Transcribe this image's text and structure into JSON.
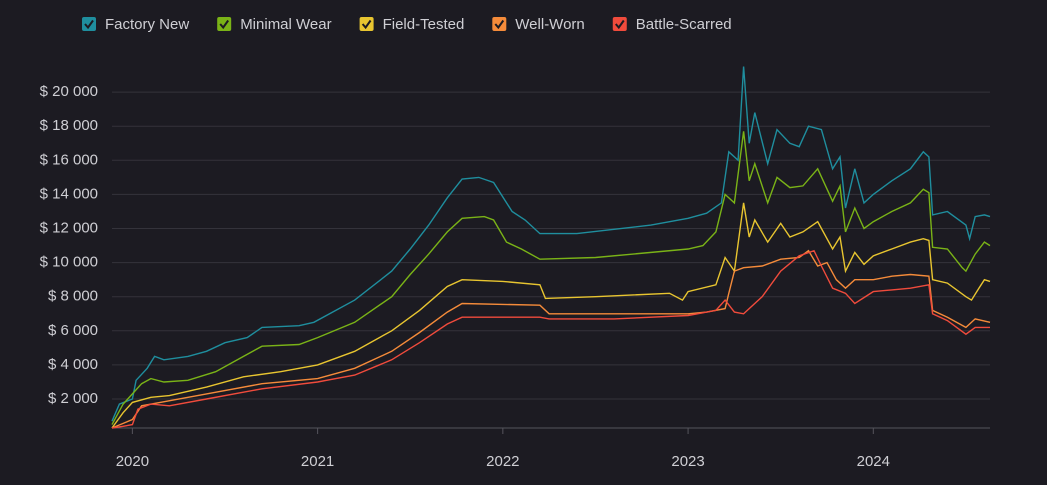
{
  "chart_data": {
    "type": "line",
    "xlim": [
      2019.89,
      2024.63
    ],
    "xticks": [
      2020,
      2021,
      2022,
      2023,
      2024
    ],
    "ylim": [
      300,
      22000
    ],
    "yticks": [
      {
        "value": 2000,
        "label": "$ 2 000"
      },
      {
        "value": 4000,
        "label": "$ 4 000"
      },
      {
        "value": 6000,
        "label": "$ 6 000"
      },
      {
        "value": 8000,
        "label": "$ 8 000"
      },
      {
        "value": 10000,
        "label": "$ 10 000"
      },
      {
        "value": 12000,
        "label": "$ 12 000"
      },
      {
        "value": 14000,
        "label": "$ 14 000"
      },
      {
        "value": 16000,
        "label": "$ 16 000"
      },
      {
        "value": 18000,
        "label": "$ 18 000"
      },
      {
        "value": 20000,
        "label": "$ 20 000"
      }
    ],
    "grid": true,
    "series": [
      {
        "name": "Factory New",
        "color": "#1f8e9e",
        "x": [
          2019.89,
          2019.93,
          2020.0,
          2020.02,
          2020.08,
          2020.12,
          2020.17,
          2020.3,
          2020.4,
          2020.5,
          2020.62,
          2020.7,
          2020.9,
          2020.98,
          2021.2,
          2021.4,
          2021.5,
          2021.6,
          2021.7,
          2021.78,
          2021.87,
          2021.95,
          2022.05,
          2022.12,
          2022.2,
          2022.4,
          2022.8,
          2023.0,
          2023.1,
          2023.18,
          2023.22,
          2023.27,
          2023.3,
          2023.33,
          2023.36,
          2023.43,
          2023.48,
          2023.55,
          2023.6,
          2023.65,
          2023.72,
          2023.78,
          2023.82,
          2023.85,
          2023.9,
          2023.95,
          2024.0,
          2024.1,
          2024.2,
          2024.27,
          2024.3,
          2024.32,
          2024.4,
          2024.5,
          2024.52,
          2024.55,
          2024.6,
          2024.63
        ],
        "values": [
          700,
          1700,
          2000,
          3100,
          3800,
          4500,
          4300,
          4500,
          4800,
          5300,
          5600,
          6200,
          6300,
          6500,
          7800,
          9500,
          10800,
          12200,
          13800,
          14900,
          15000,
          14700,
          13000,
          12500,
          11700,
          11700,
          12200,
          12600,
          12900,
          13500,
          16500,
          16000,
          21500,
          17000,
          18800,
          15800,
          17800,
          17000,
          16800,
          18000,
          17800,
          15500,
          16200,
          13200,
          15500,
          13500,
          14000,
          14800,
          15500,
          16500,
          16200,
          12800,
          13000,
          12200,
          11400,
          12700,
          12800,
          12700
        ]
      },
      {
        "name": "Minimal Wear",
        "color": "#7ab317",
        "x": [
          2019.89,
          2019.95,
          2020.0,
          2020.05,
          2020.1,
          2020.17,
          2020.3,
          2020.45,
          2020.6,
          2020.7,
          2020.9,
          2021.0,
          2021.2,
          2021.4,
          2021.5,
          2021.6,
          2021.7,
          2021.78,
          2021.9,
          2021.95,
          2022.02,
          2022.1,
          2022.2,
          2022.5,
          2023.0,
          2023.08,
          2023.15,
          2023.2,
          2023.25,
          2023.3,
          2023.33,
          2023.36,
          2023.43,
          2023.48,
          2023.55,
          2023.62,
          2023.7,
          2023.78,
          2023.82,
          2023.85,
          2023.9,
          2023.95,
          2024.0,
          2024.1,
          2024.2,
          2024.27,
          2024.3,
          2024.32,
          2024.4,
          2024.48,
          2024.5,
          2024.55,
          2024.6,
          2024.63
        ],
        "values": [
          500,
          1700,
          2300,
          2900,
          3200,
          3000,
          3100,
          3600,
          4500,
          5100,
          5200,
          5600,
          6500,
          8000,
          9300,
          10500,
          11800,
          12600,
          12700,
          12500,
          11200,
          10800,
          10200,
          10300,
          10800,
          11000,
          11800,
          14000,
          13500,
          17700,
          14800,
          15800,
          13500,
          15000,
          14400,
          14500,
          15500,
          13600,
          14500,
          11800,
          13200,
          12000,
          12400,
          13000,
          13500,
          14300,
          14100,
          10900,
          10800,
          9700,
          9500,
          10500,
          11200,
          11000
        ]
      },
      {
        "name": "Field-Tested",
        "color": "#e8c530",
        "x": [
          2019.89,
          2019.95,
          2020.0,
          2020.1,
          2020.2,
          2020.4,
          2020.6,
          2020.8,
          2021.0,
          2021.2,
          2021.4,
          2021.55,
          2021.7,
          2021.78,
          2022.0,
          2022.2,
          2022.23,
          2022.5,
          2022.9,
          2022.97,
          2023.0,
          2023.15,
          2023.2,
          2023.25,
          2023.3,
          2023.33,
          2023.36,
          2023.43,
          2023.5,
          2023.55,
          2023.62,
          2023.7,
          2023.78,
          2023.82,
          2023.85,
          2023.9,
          2023.95,
          2024.0,
          2024.1,
          2024.2,
          2024.27,
          2024.3,
          2024.32,
          2024.4,
          2024.5,
          2024.53,
          2024.57,
          2024.6,
          2024.63
        ],
        "values": [
          300,
          1200,
          1800,
          2100,
          2200,
          2700,
          3300,
          3600,
          4000,
          4800,
          6000,
          7200,
          8600,
          9000,
          8900,
          8700,
          7900,
          8000,
          8200,
          7800,
          8300,
          8700,
          10300,
          9500,
          13500,
          11500,
          12500,
          11200,
          12300,
          11500,
          11800,
          12400,
          10800,
          11500,
          9500,
          10600,
          9900,
          10400,
          10800,
          11200,
          11400,
          11300,
          9000,
          8800,
          8000,
          7800,
          8500,
          9000,
          8900
        ]
      },
      {
        "name": "Well-Worn",
        "color": "#f58b3a",
        "x": [
          2019.89,
          2020.0,
          2020.05,
          2020.15,
          2020.4,
          2020.7,
          2021.0,
          2021.2,
          2021.4,
          2021.55,
          2021.7,
          2021.78,
          2022.2,
          2022.25,
          2022.6,
          2023.0,
          2023.1,
          2023.2,
          2023.22,
          2023.25,
          2023.3,
          2023.4,
          2023.5,
          2023.6,
          2023.65,
          2023.7,
          2023.75,
          2023.8,
          2023.85,
          2023.9,
          2024.0,
          2024.1,
          2024.2,
          2024.3,
          2024.32,
          2024.4,
          2024.5,
          2024.55,
          2024.63
        ],
        "values": [
          300,
          800,
          1600,
          1800,
          2300,
          2900,
          3200,
          3800,
          4800,
          5900,
          7100,
          7600,
          7500,
          7000,
          7000,
          7000,
          7100,
          7300,
          8200,
          9500,
          9700,
          9800,
          10200,
          10300,
          10700,
          9800,
          10000,
          9000,
          8500,
          9000,
          9000,
          9200,
          9300,
          9200,
          7200,
          6800,
          6200,
          6700,
          6500
        ]
      },
      {
        "name": "Battle-Scarred",
        "color": "#f04b3c",
        "x": [
          2019.89,
          2019.95,
          2020.0,
          2020.03,
          2020.1,
          2020.2,
          2020.4,
          2020.7,
          2021.0,
          2021.2,
          2021.4,
          2021.55,
          2021.7,
          2021.78,
          2022.2,
          2022.25,
          2022.6,
          2023.0,
          2023.15,
          2023.2,
          2023.25,
          2023.3,
          2023.4,
          2023.5,
          2023.6,
          2023.68,
          2023.72,
          2023.78,
          2023.85,
          2023.9,
          2024.0,
          2024.1,
          2024.2,
          2024.3,
          2024.32,
          2024.4,
          2024.5,
          2024.55,
          2024.63
        ],
        "values": [
          300,
          400,
          500,
          1400,
          1700,
          1600,
          2000,
          2600,
          3000,
          3400,
          4300,
          5300,
          6400,
          6800,
          6800,
          6700,
          6700,
          6900,
          7200,
          7800,
          7100,
          7000,
          8000,
          9500,
          10400,
          10700,
          9800,
          8500,
          8200,
          7600,
          8300,
          8400,
          8500,
          8700,
          7000,
          6600,
          5800,
          6200,
          6200
        ]
      }
    ]
  }
}
